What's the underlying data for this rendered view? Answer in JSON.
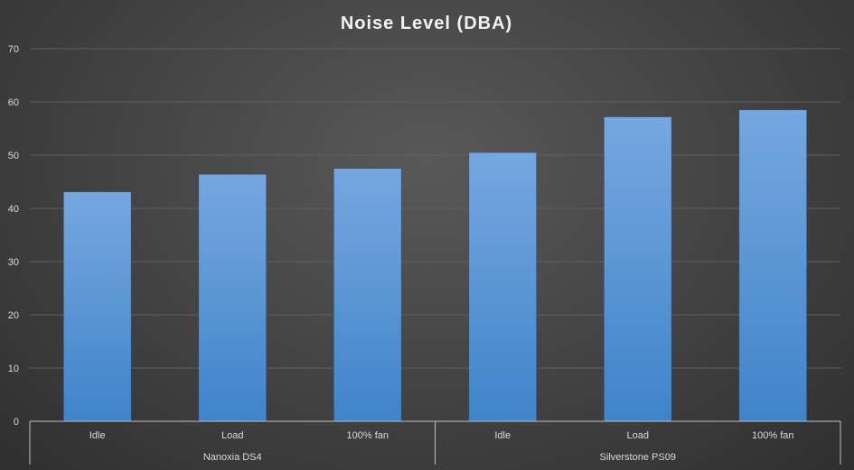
{
  "chart_data": {
    "type": "bar",
    "title": "Noise Level (DBA)",
    "xlabel": "",
    "ylabel": "",
    "ylim": [
      0,
      70
    ],
    "yticks": [
      "0",
      "10",
      "20",
      "30",
      "40",
      "50",
      "60",
      "70"
    ],
    "grid": true,
    "legend": "none",
    "groups": [
      {
        "name": "Nanoxia DS4",
        "categories": [
          "Idle",
          "Load",
          "100% fan"
        ],
        "values": [
          43.1,
          46.4,
          47.5
        ]
      },
      {
        "name": "Silverstone PS09",
        "categories": [
          "Idle",
          "Load",
          "100% fan"
        ],
        "values": [
          50.5,
          57.2,
          58.5
        ]
      }
    ],
    "colors": {
      "bar_top": "#76a7e0",
      "bar_bottom": "#3f84c9",
      "background": "#474747",
      "text": "#d9d9d9"
    }
  }
}
